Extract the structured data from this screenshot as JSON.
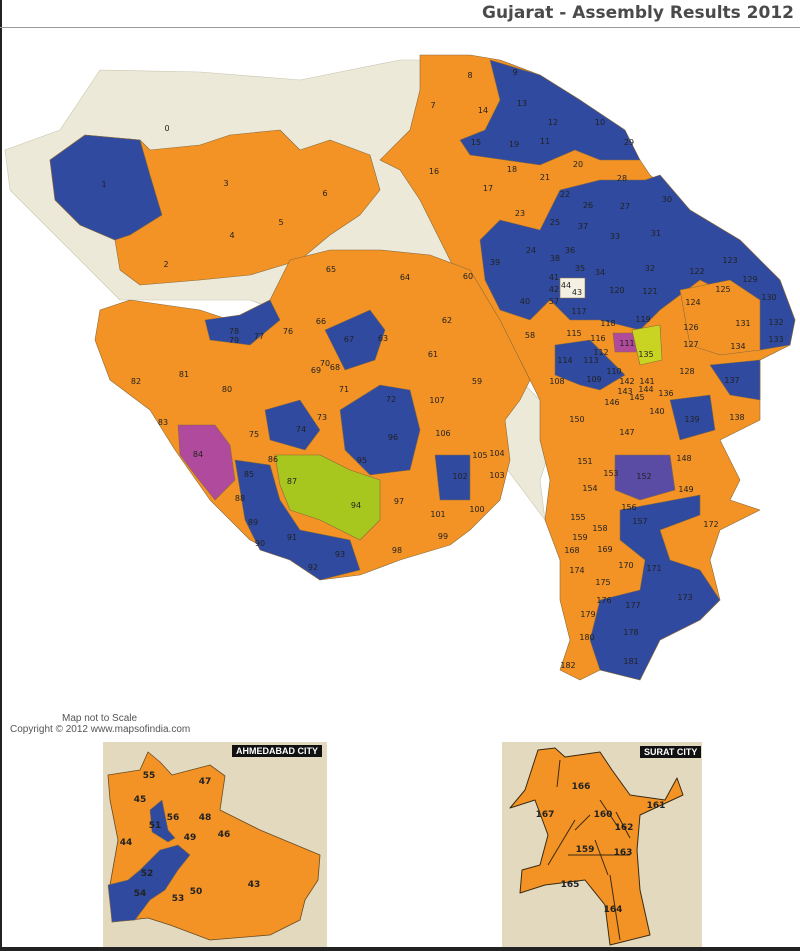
{
  "title": "Gujarat - Assembly Results 2012",
  "colors": {
    "bjp_orange": "#F39325",
    "congress_blue": "#2F4A9E",
    "other_green": "#A7C71F",
    "other_magenta": "#B04A9C",
    "other_purple": "#5A4CA5",
    "other_yellow": "#C9D422",
    "land_beige": "#ECE9D8",
    "inset_background": "#E2D9BF"
  },
  "note": {
    "scale": "Map not to Scale",
    "copyright": "Copyright © 2012 www.mapsofindia.com"
  },
  "main_map": {
    "labels": [
      "0",
      "1",
      "2",
      "3",
      "4",
      "5",
      "6",
      "7",
      "8",
      "9",
      "10",
      "11",
      "12",
      "13",
      "14",
      "15",
      "16",
      "17",
      "18",
      "19",
      "20",
      "21",
      "22",
      "23",
      "24",
      "25",
      "26",
      "27",
      "28",
      "29",
      "30",
      "31",
      "32",
      "33",
      "34",
      "35",
      "36",
      "37",
      "38",
      "39",
      "40",
      "41",
      "42",
      "43",
      "44",
      "57",
      "58",
      "59",
      "60",
      "61",
      "62",
      "63",
      "64",
      "65",
      "66",
      "67",
      "68",
      "69",
      "70",
      "71",
      "72",
      "73",
      "74",
      "75",
      "76",
      "77",
      "78",
      "79",
      "80",
      "81",
      "82",
      "83",
      "84",
      "85",
      "86",
      "87",
      "88",
      "89",
      "90",
      "91",
      "92",
      "93",
      "94",
      "95",
      "96",
      "97",
      "98",
      "99",
      "100",
      "101",
      "102",
      "103",
      "104",
      "105",
      "106",
      "107",
      "108",
      "109",
      "110",
      "111",
      "112",
      "113",
      "114",
      "115",
      "116",
      "117",
      "118",
      "119",
      "120",
      "121",
      "122",
      "123",
      "124",
      "125",
      "126",
      "127",
      "128",
      "129",
      "130",
      "131",
      "132",
      "133",
      "134",
      "135",
      "136",
      "137",
      "138",
      "139",
      "140",
      "141",
      "142",
      "143",
      "144",
      "145",
      "146",
      "147",
      "148",
      "149",
      "150",
      "151",
      "152",
      "153",
      "154",
      "155",
      "156",
      "157",
      "158",
      "159",
      "168",
      "169",
      "170",
      "171",
      "172",
      "173",
      "174",
      "175",
      "176",
      "177",
      "178",
      "179",
      "180",
      "181",
      "182"
    ]
  },
  "ahmedabad_inset": {
    "title": "AHMEDABAD CITY",
    "labels": [
      "55",
      "47",
      "45",
      "56",
      "48",
      "51",
      "46",
      "44",
      "49",
      "52",
      "54",
      "50",
      "53",
      "43"
    ]
  },
  "surat_inset": {
    "title": "SURAT CITY",
    "labels": [
      "166",
      "167",
      "160",
      "161",
      "162",
      "159",
      "163",
      "165",
      "164"
    ]
  }
}
